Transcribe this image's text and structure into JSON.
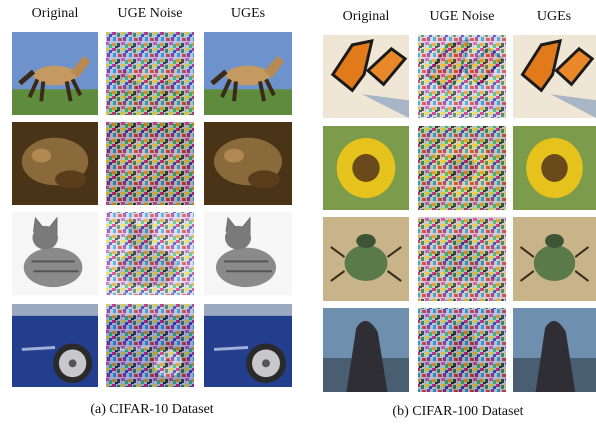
{
  "panels": [
    {
      "columns": [
        "Original",
        "UGE Noise",
        "UGEs"
      ],
      "caption": "(a) CIFAR-10 Dataset"
    },
    {
      "columns": [
        "Original",
        "UGE Noise",
        "UGEs"
      ],
      "caption": "(b) CIFAR-100 Dataset"
    }
  ]
}
